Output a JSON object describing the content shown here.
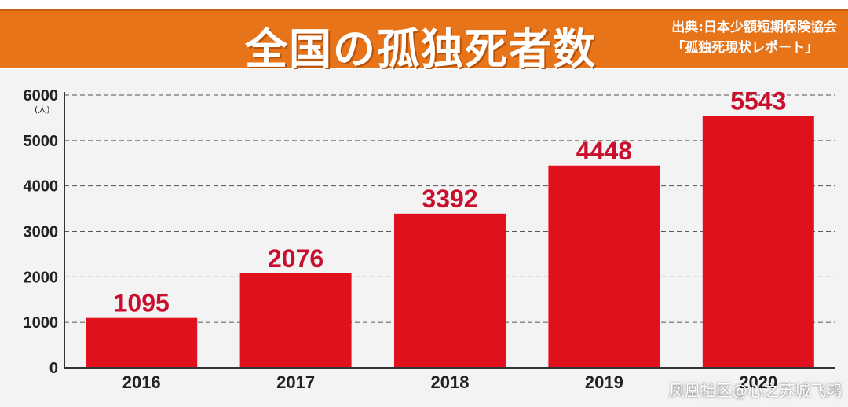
{
  "banner": {
    "title": "全国の孤独死者数",
    "source_line1": "出典:日本少額短期保険協会",
    "source_line2": "「孤独死現状レポート」"
  },
  "chart_data": {
    "type": "bar",
    "title": "全国の孤独死者数",
    "xlabel": "",
    "ylabel": "(人)",
    "categories": [
      "2016",
      "2017",
      "2018",
      "2019",
      "2020"
    ],
    "values": [
      1095,
      2076,
      3392,
      4448,
      5543
    ],
    "ylim": [
      0,
      6000
    ],
    "yticks": [
      0,
      1000,
      2000,
      3000,
      4000,
      5000,
      6000
    ],
    "grid": true,
    "bar_color": "#e0101c",
    "label_color": "#c8102e"
  },
  "watermark": "凤凰社区@心之苏城飞鸿"
}
